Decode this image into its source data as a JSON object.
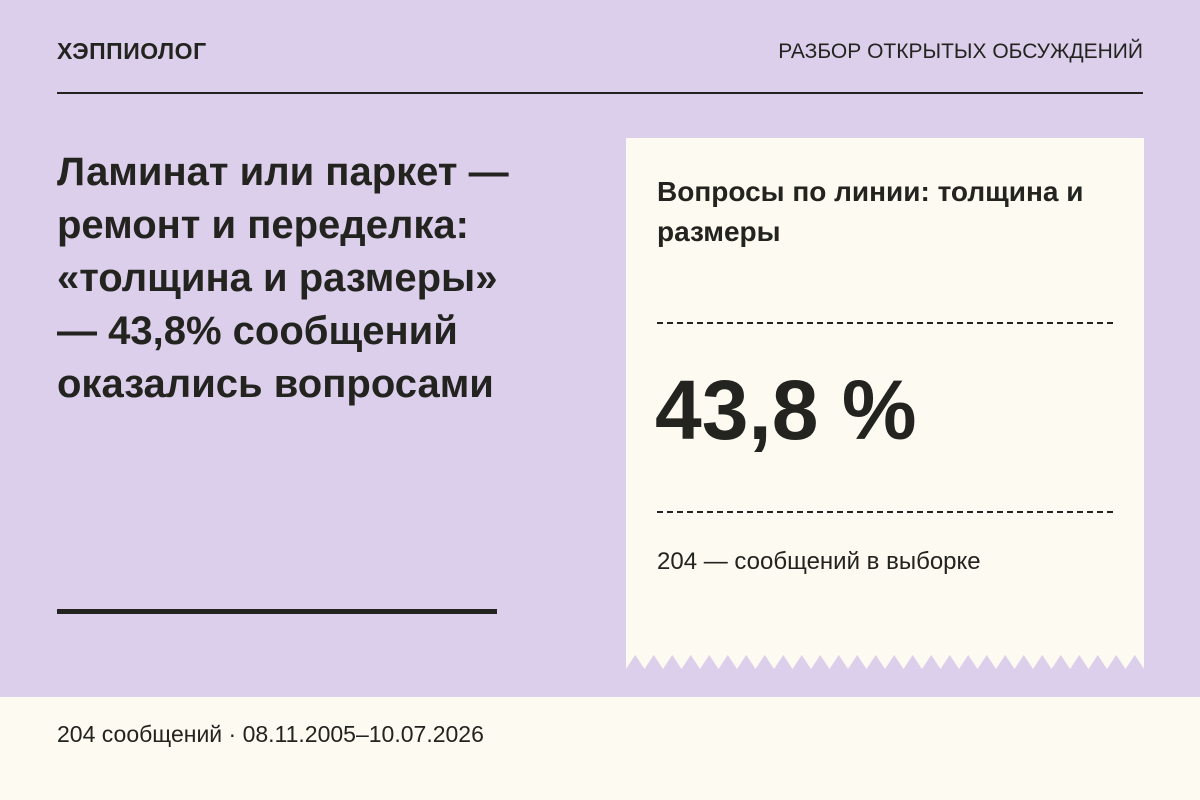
{
  "header": {
    "brand": "ХЭППИОЛОГ",
    "section": "РАЗБОР ОТКРЫТЫХ ОБСУЖДЕНИЙ"
  },
  "headline": "Ламинат или паркет — ремонт и переделка: «толщина и размеры» — 43,8% сообщений оказались вопросами",
  "card": {
    "title": "Вопросы по линии: толщина и размеры",
    "value": "43,8 %",
    "note": "204 — сообщений в выборке"
  },
  "footer": "204 сообщений · 08.11.2005–10.07.2026"
}
